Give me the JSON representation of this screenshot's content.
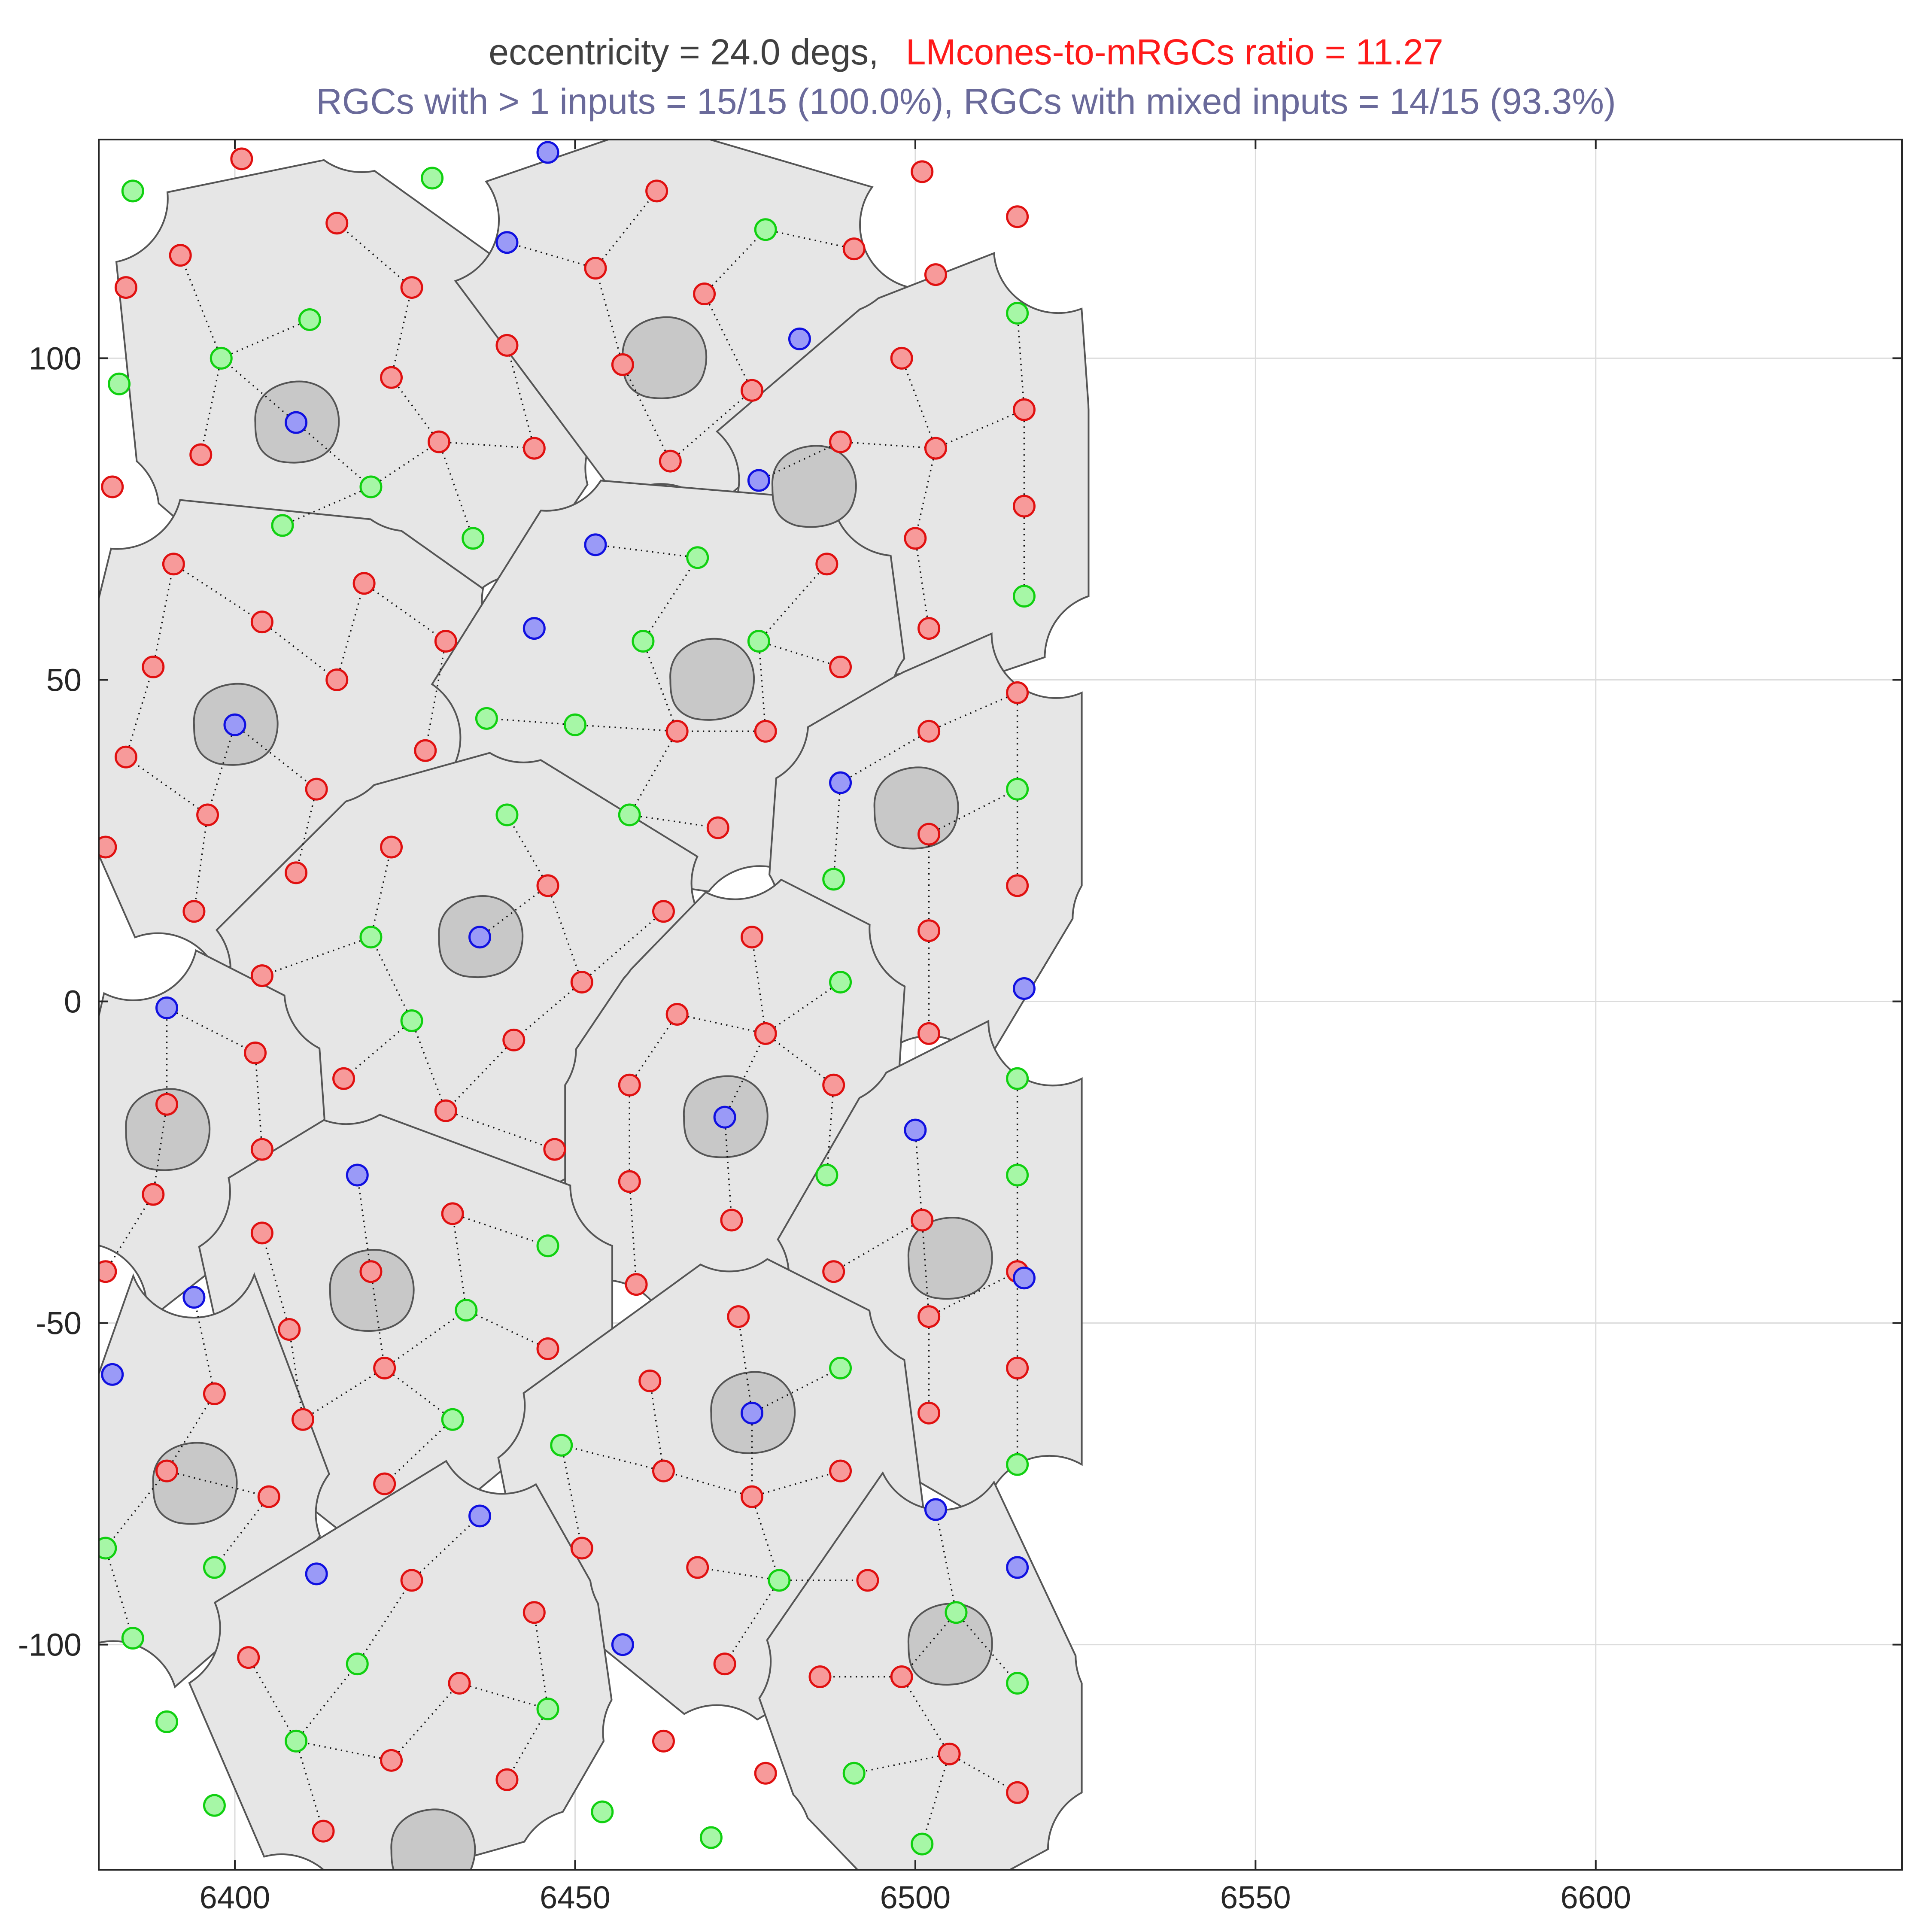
{
  "chart_data": {
    "type": "scatter",
    "title_line1_part1": "eccentricity = 24.0 degs,",
    "title_line1_part2": "LMcones-to-mRGCs ratio = 11.27",
    "title_line2": "RGCs with > 1 inputs = 15/15 (100.0%), RGCs with mixed inputs = 14/15 (93.3%)",
    "title_colors": {
      "part1": "#404040",
      "part2": "#ff1a1a",
      "line2": "#6a6a9a"
    },
    "xlabel": "",
    "ylabel": "",
    "xlim": [
      6380,
      6645
    ],
    "ylim": [
      -135,
      134
    ],
    "xticks": [
      6400,
      6450,
      6500,
      6550,
      6600
    ],
    "yticks": [
      100,
      50,
      0,
      -50,
      -100
    ],
    "xtick_labels": [
      "6400",
      "6450",
      "6500",
      "6550",
      "6600"
    ],
    "ytick_labels": [
      "100",
      "50",
      "0",
      "-50",
      "-100"
    ],
    "grid": true,
    "colors": {
      "L": "#ff2020",
      "M": "#20e020",
      "S": "#2020ff",
      "region": "#e6e6e6"
    },
    "rgcs": [
      {
        "id": 1,
        "center": [
          6409,
          90
        ],
        "cones": [
          [
            6409,
            90
          ],
          [
            6395,
            85
          ],
          [
            6398,
            100
          ],
          [
            6392,
            116
          ],
          [
            6407,
            74
          ],
          [
            6420,
            80
          ],
          [
            6435,
            72
          ],
          [
            6430,
            87
          ],
          [
            6444,
            86
          ],
          [
            6423,
            97
          ],
          [
            6440,
            102
          ],
          [
            6426,
            111
          ],
          [
            6411,
            106
          ],
          [
            6415,
            121
          ]
        ]
      },
      {
        "id": 2,
        "center": [
          6463,
          100
        ],
        "cones": [
          [
            6440,
            118
          ],
          [
            6453,
            114
          ],
          [
            6462,
            126
          ],
          [
            6457,
            99
          ],
          [
            6469,
            110
          ],
          [
            6464,
            84
          ],
          [
            6476,
            95
          ],
          [
            6478,
            120
          ],
          [
            6491,
            117
          ]
        ]
      },
      {
        "id": 3,
        "center": [
          6485,
          80
        ],
        "cones": [
          [
            6477,
            81
          ],
          [
            6489,
            87
          ],
          [
            6498,
            100
          ],
          [
            6503,
            86
          ],
          [
            6500,
            72
          ],
          [
            6502,
            58
          ],
          [
            6516,
            63
          ],
          [
            6516,
            77
          ],
          [
            6516,
            92
          ],
          [
            6515,
            107
          ]
        ]
      },
      {
        "id": 4,
        "center": [
          6400,
          43
        ],
        "cones": [
          [
            6400,
            43
          ],
          [
            6391,
            68
          ],
          [
            6388,
            52
          ],
          [
            6384,
            38
          ],
          [
            6396,
            29
          ],
          [
            6394,
            14
          ],
          [
            6409,
            20
          ],
          [
            6412,
            33
          ],
          [
            6428,
            39
          ],
          [
            6431,
            56
          ],
          [
            6415,
            50
          ],
          [
            6419,
            65
          ],
          [
            6404,
            59
          ]
        ]
      },
      {
        "id": 5,
        "center": [
          6470,
          50
        ],
        "cones": [
          [
            6453,
            71
          ],
          [
            6468,
            69
          ],
          [
            6487,
            68
          ],
          [
            6477,
            56
          ],
          [
            6489,
            52
          ],
          [
            6460,
            56
          ],
          [
            6450,
            43
          ],
          [
            6458,
            29
          ],
          [
            6465,
            42
          ],
          [
            6471,
            27
          ],
          [
            6478,
            42
          ],
          [
            6437,
            44
          ]
        ]
      },
      {
        "id": 6,
        "center": [
          6500,
          30
        ],
        "cones": [
          [
            6489,
            34
          ],
          [
            6502,
            26
          ],
          [
            6502,
            42
          ],
          [
            6515,
            48
          ],
          [
            6515,
            33
          ],
          [
            6515,
            18
          ],
          [
            6502,
            11
          ],
          [
            6502,
            -5
          ],
          [
            6488,
            19
          ]
        ]
      },
      {
        "id": 7,
        "center": [
          6436,
          10
        ],
        "cones": [
          [
            6436,
            10
          ],
          [
            6420,
            10
          ],
          [
            6404,
            4
          ],
          [
            6426,
            -3
          ],
          [
            6441,
            -6
          ],
          [
            6447,
            -23
          ],
          [
            6431,
            -17
          ],
          [
            6416,
            -12
          ],
          [
            6451,
            3
          ],
          [
            6446,
            18
          ],
          [
            6463,
            14
          ],
          [
            6423,
            24
          ],
          [
            6440,
            29
          ]
        ]
      },
      {
        "id": 8,
        "center": [
          6390,
          -20
        ],
        "cones": [
          [
            6390,
            -1
          ],
          [
            6403,
            -8
          ],
          [
            6390,
            -16
          ],
          [
            6404,
            -23
          ],
          [
            6388,
            -30
          ],
          [
            6381,
            -42
          ]
        ]
      },
      {
        "id": 9,
        "center": [
          6472,
          -18
        ],
        "cones": [
          [
            6472,
            -18
          ],
          [
            6458,
            -13
          ],
          [
            6465,
            -2
          ],
          [
            6476,
            10
          ],
          [
            6478,
            -5
          ],
          [
            6489,
            3
          ],
          [
            6488,
            -13
          ],
          [
            6487,
            -27
          ],
          [
            6473,
            -34
          ],
          [
            6459,
            -44
          ],
          [
            6458,
            -28
          ]
        ]
      },
      {
        "id": 10,
        "center": [
          6505,
          -40
        ],
        "cones": [
          [
            6500,
            -20
          ],
          [
            6501,
            -34
          ],
          [
            6502,
            -49
          ],
          [
            6502,
            -64
          ],
          [
            6515,
            -12
          ],
          [
            6515,
            -27
          ],
          [
            6515,
            -42
          ],
          [
            6515,
            -57
          ],
          [
            6515,
            -72
          ],
          [
            6488,
            -42
          ]
        ]
      },
      {
        "id": 11,
        "center": [
          6420,
          -45
        ],
        "cones": [
          [
            6418,
            -27
          ],
          [
            6420,
            -42
          ],
          [
            6432,
            -33
          ],
          [
            6446,
            -38
          ],
          [
            6434,
            -48
          ],
          [
            6446,
            -54
          ],
          [
            6432,
            -65
          ],
          [
            6422,
            -57
          ],
          [
            6422,
            -75
          ],
          [
            6410,
            -65
          ],
          [
            6408,
            -51
          ],
          [
            6404,
            -36
          ]
        ]
      },
      {
        "id": 12,
        "center": [
          6394,
          -75
        ],
        "cones": [
          [
            6394,
            -46
          ],
          [
            6397,
            -61
          ],
          [
            6390,
            -73
          ],
          [
            6405,
            -77
          ],
          [
            6397,
            -88
          ],
          [
            6385,
            -99
          ],
          [
            6381,
            -85
          ]
        ]
      },
      {
        "id": 13,
        "center": [
          6476,
          -64
        ],
        "cones": [
          [
            6476,
            -64
          ],
          [
            6474,
            -49
          ],
          [
            6489,
            -57
          ],
          [
            6461,
            -59
          ],
          [
            6448,
            -69
          ],
          [
            6463,
            -73
          ],
          [
            6476,
            -77
          ],
          [
            6489,
            -73
          ],
          [
            6493,
            -90
          ],
          [
            6480,
            -90
          ],
          [
            6472,
            -103
          ],
          [
            6468,
            -88
          ],
          [
            6451,
            -85
          ]
        ]
      },
      {
        "id": 14,
        "center": [
          6505,
          -100
        ],
        "cones": [
          [
            6503,
            -79
          ],
          [
            6506,
            -95
          ],
          [
            6498,
            -105
          ],
          [
            6486,
            -105
          ],
          [
            6491,
            -120
          ],
          [
            6501,
            -131
          ],
          [
            6505,
            -117
          ],
          [
            6515,
            -106
          ],
          [
            6515,
            -123
          ]
        ]
      },
      {
        "id": 15,
        "center": [
          6429,
          -132
        ],
        "cones": [
          [
            6436,
            -80
          ],
          [
            6444,
            -95
          ],
          [
            6426,
            -90
          ],
          [
            6418,
            -103
          ],
          [
            6402,
            -102
          ],
          [
            6409,
            -115
          ],
          [
            6413,
            -129
          ],
          [
            6423,
            -118
          ],
          [
            6433,
            -106
          ],
          [
            6446,
            -110
          ],
          [
            6440,
            -121
          ]
        ]
      }
    ],
    "unconnected_cones": [
      {
        "type": "M",
        "pos": [
          6385,
          126
        ]
      },
      {
        "type": "L",
        "pos": [
          6401,
          131
        ]
      },
      {
        "type": "M",
        "pos": [
          6429,
          128
        ]
      },
      {
        "type": "S",
        "pos": [
          6446,
          132
        ]
      },
      {
        "type": "L",
        "pos": [
          6384,
          111
        ]
      },
      {
        "type": "M",
        "pos": [
          6383,
          96
        ]
      },
      {
        "type": "L",
        "pos": [
          6382,
          80
        ]
      },
      {
        "type": "L",
        "pos": [
          6501,
          129
        ]
      },
      {
        "type": "L",
        "pos": [
          6515,
          122
        ]
      },
      {
        "type": "L",
        "pos": [
          6503,
          113
        ]
      },
      {
        "type": "S",
        "pos": [
          6483,
          103
        ]
      },
      {
        "type": "S",
        "pos": [
          6444,
          58
        ]
      },
      {
        "type": "L",
        "pos": [
          6381,
          24
        ]
      },
      {
        "type": "S",
        "pos": [
          6516,
          2
        ]
      },
      {
        "type": "S",
        "pos": [
          6516,
          -43
        ]
      },
      {
        "type": "S",
        "pos": [
          6382,
          -58
        ]
      },
      {
        "type": "S",
        "pos": [
          6412,
          -89
        ]
      },
      {
        "type": "S",
        "pos": [
          6515,
          -88
        ]
      },
      {
        "type": "S",
        "pos": [
          6457,
          -100
        ]
      },
      {
        "type": "M",
        "pos": [
          6390,
          -112
        ]
      },
      {
        "type": "L",
        "pos": [
          6463,
          -115
        ]
      },
      {
        "type": "L",
        "pos": [
          6478,
          -120
        ]
      },
      {
        "type": "M",
        "pos": [
          6397,
          -125
        ]
      },
      {
        "type": "M",
        "pos": [
          6454,
          -126
        ]
      },
      {
        "type": "M",
        "pos": [
          6470,
          -130
        ]
      }
    ]
  }
}
